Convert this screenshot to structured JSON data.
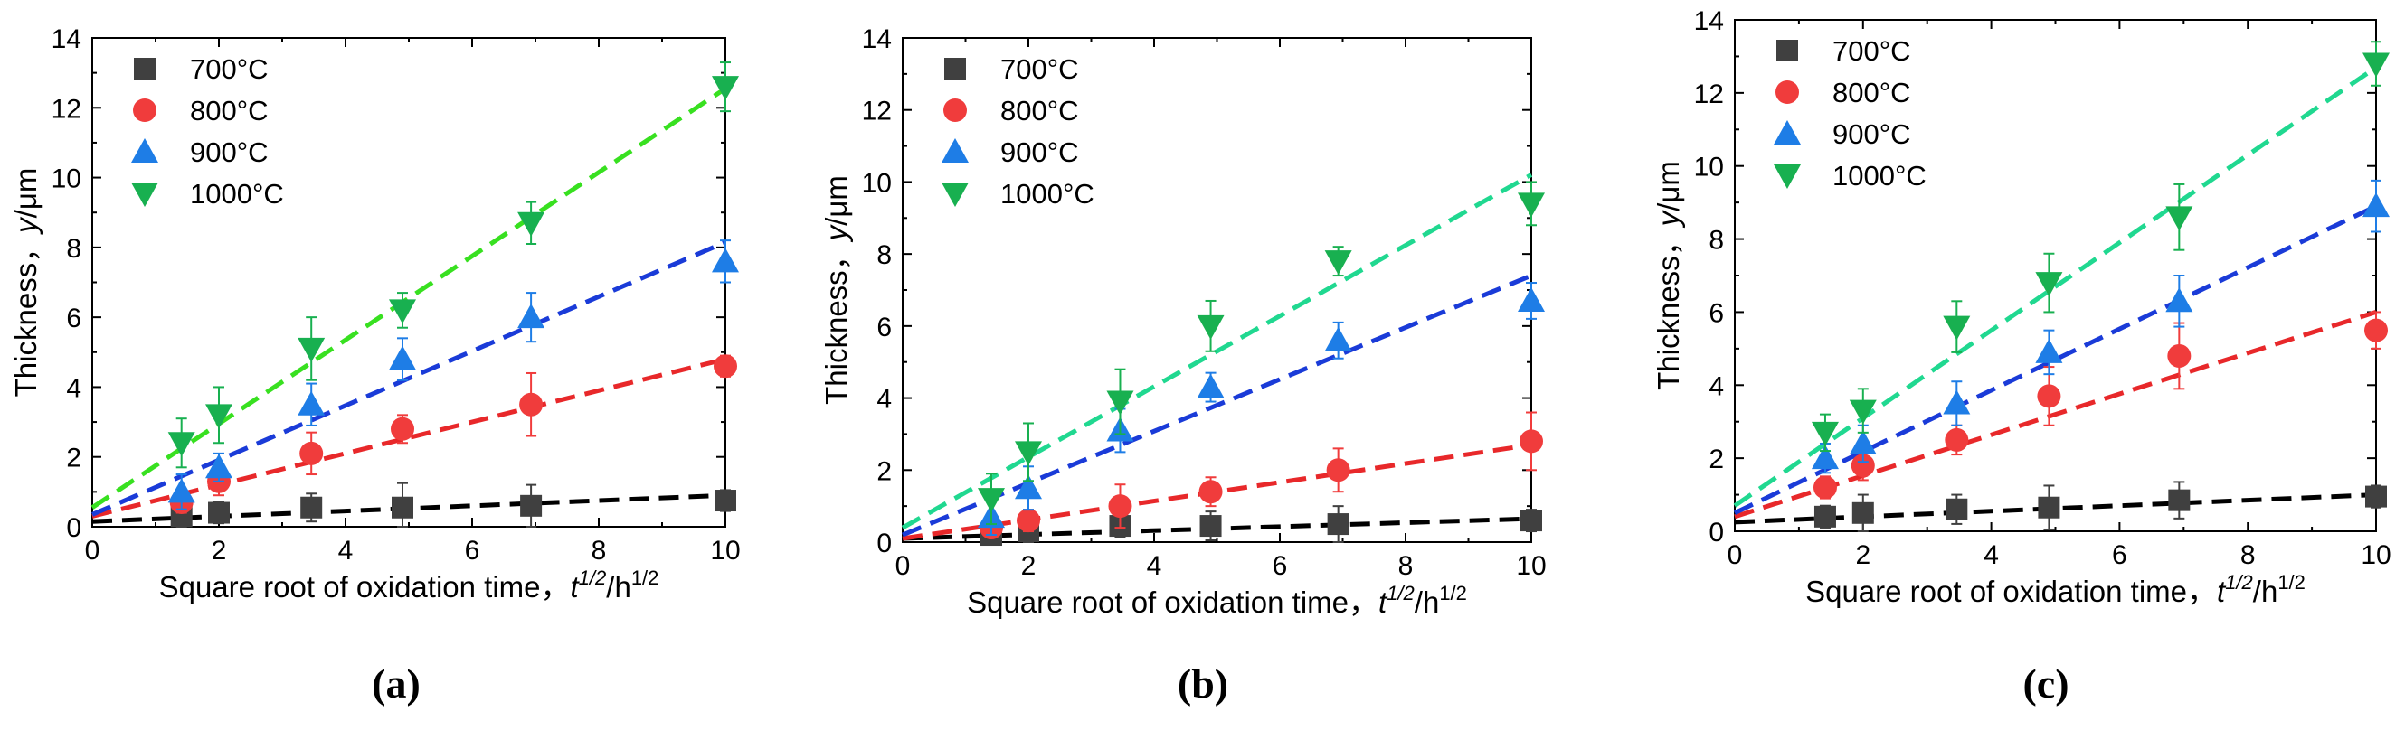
{
  "figure": {
    "panel_labels": [
      "(a)",
      "(b)",
      "(c)"
    ]
  },
  "colors": {
    "700": "#404040",
    "800": "#f03c3c",
    "900": "#1e7de6",
    "1000": "#18b050",
    "fit_700": "#000000",
    "fit_800": "#e8282a",
    "fit_900": "#1a3bd8",
    "fit_1000_a": "#38e020",
    "fit_1000_bc": "#20d890"
  },
  "chart_data": [
    {
      "type": "scatter",
      "title": "(a)",
      "xlabel": "Square root of oxidation time，",
      "xlabel_var": "t",
      "xlabel_var_sup": "1/2",
      "xlabel_unit": "/h",
      "xlabel_unit_sup": "1/2",
      "ylabel": "Thickness，",
      "ylabel_var": "y",
      "ylabel_unit": "/μm",
      "xlim": [
        0,
        10
      ],
      "ylim": [
        0,
        14
      ],
      "xticks": [
        "0",
        "2",
        "4",
        "6",
        "8",
        "10"
      ],
      "yticks": [
        "0",
        "2",
        "4",
        "6",
        "8",
        "10",
        "12",
        "14"
      ],
      "x": [
        1.41,
        2,
        3.46,
        4.9,
        6.93,
        10
      ],
      "legend_position": "top-left",
      "series": [
        {
          "name": "700°C",
          "marker": "square",
          "color_key": "700",
          "values": [
            0.3,
            0.4,
            0.55,
            0.55,
            0.6,
            0.75
          ],
          "errors": [
            0.3,
            0.3,
            0.4,
            0.7,
            0.6,
            0.3
          ],
          "fit": [
            0.15,
            0.075
          ],
          "fit_color_key": "fit_700"
        },
        {
          "name": "800°C",
          "marker": "circle",
          "color_key": "800",
          "values": [
            0.7,
            1.3,
            2.1,
            2.8,
            3.5,
            4.6
          ],
          "errors": [
            0.3,
            0.4,
            0.6,
            0.4,
            0.9,
            0.3
          ],
          "fit": [
            0.3,
            0.45
          ],
          "fit_color_key": "fit_800"
        },
        {
          "name": "900°C",
          "marker": "triangle-up",
          "color_key": "900",
          "values": [
            1.0,
            1.7,
            3.5,
            4.8,
            6.0,
            7.6
          ],
          "errors": [
            0.5,
            0.4,
            0.6,
            0.6,
            0.7,
            0.6
          ],
          "fit": [
            0.35,
            0.78
          ],
          "fit_color_key": "fit_900"
        },
        {
          "name": "1000°C",
          "marker": "triangle-down",
          "color_key": "1000",
          "values": [
            2.4,
            3.2,
            5.1,
            6.2,
            8.7,
            12.6
          ],
          "errors": [
            0.7,
            0.8,
            0.9,
            0.5,
            0.6,
            0.7
          ],
          "fit": [
            0.55,
            1.2
          ],
          "fit_color_key": "fit_1000_a"
        }
      ]
    },
    {
      "type": "scatter",
      "title": "(b)",
      "xlabel": "Square root of oxidation time，",
      "xlabel_var": "t",
      "xlabel_var_sup": "1/2",
      "xlabel_unit": "/h",
      "xlabel_unit_sup": "1/2",
      "ylabel": "Thickness，",
      "ylabel_var": "y",
      "ylabel_unit": "/μm",
      "xlim": [
        0,
        10
      ],
      "ylim": [
        0,
        14
      ],
      "xticks": [
        "0",
        "2",
        "4",
        "6",
        "8",
        "10"
      ],
      "yticks": [
        "0",
        "2",
        "4",
        "6",
        "8",
        "10",
        "12",
        "14"
      ],
      "x": [
        1.41,
        2,
        3.46,
        4.9,
        6.93,
        10
      ],
      "legend_position": "top-left",
      "series": [
        {
          "name": "700°C",
          "marker": "square",
          "color_key": "700",
          "values": [
            0.2,
            0.3,
            0.45,
            0.45,
            0.5,
            0.6
          ],
          "errors": [
            0.2,
            0.3,
            0.3,
            0.4,
            0.5,
            0.3
          ],
          "fit": [
            0.1,
            0.055
          ],
          "fit_color_key": "fit_700"
        },
        {
          "name": "800°C",
          "marker": "circle",
          "color_key": "800",
          "values": [
            0.4,
            0.6,
            1.0,
            1.4,
            2.0,
            2.8
          ],
          "errors": [
            0.2,
            0.3,
            0.6,
            0.4,
            0.6,
            0.8
          ],
          "fit": [
            0.1,
            0.26
          ],
          "fit_color_key": "fit_800"
        },
        {
          "name": "900°C",
          "marker": "triangle-up",
          "color_key": "900",
          "values": [
            0.7,
            1.5,
            3.1,
            4.3,
            5.6,
            6.7
          ],
          "errors": [
            0.5,
            0.6,
            0.6,
            0.4,
            0.5,
            0.5
          ],
          "fit": [
            0.2,
            0.72
          ],
          "fit_color_key": "fit_900"
        },
        {
          "name": "1000°C",
          "marker": "triangle-down",
          "color_key": "1000",
          "values": [
            1.2,
            2.5,
            3.9,
            6.0,
            7.8,
            9.4
          ],
          "errors": [
            0.7,
            0.8,
            0.9,
            0.7,
            0.4,
            0.6
          ],
          "fit": [
            0.4,
            0.98
          ],
          "fit_color_key": "fit_1000_bc"
        }
      ]
    },
    {
      "type": "scatter",
      "title": "(c)",
      "xlabel": "Square root of oxidation time，",
      "xlabel_var": "t",
      "xlabel_var_sup": "1/2",
      "xlabel_unit": "/h",
      "xlabel_unit_sup": "1/2",
      "ylabel": "Thickness，",
      "ylabel_var": "y",
      "ylabel_unit": "/μm",
      "xlim": [
        0,
        10
      ],
      "ylim": [
        0,
        14
      ],
      "xticks": [
        "0",
        "2",
        "4",
        "6",
        "8",
        "10"
      ],
      "yticks": [
        "0",
        "2",
        "4",
        "6",
        "8",
        "10",
        "12",
        "14"
      ],
      "x": [
        1.41,
        2,
        3.46,
        4.9,
        6.93,
        10
      ],
      "legend_position": "top-left",
      "series": [
        {
          "name": "700°C",
          "marker": "square",
          "color_key": "700",
          "values": [
            0.4,
            0.5,
            0.6,
            0.65,
            0.85,
            0.95
          ],
          "errors": [
            0.3,
            0.5,
            0.4,
            0.6,
            0.5,
            0.3
          ],
          "fit": [
            0.25,
            0.075
          ],
          "fit_color_key": "fit_700"
        },
        {
          "name": "800°C",
          "marker": "circle",
          "color_key": "800",
          "values": [
            1.2,
            1.8,
            2.5,
            3.7,
            4.8,
            5.5
          ],
          "errors": [
            0.3,
            0.4,
            0.4,
            0.8,
            0.9,
            0.5
          ],
          "fit": [
            0.4,
            0.56
          ],
          "fit_color_key": "fit_800"
        },
        {
          "name": "900°C",
          "marker": "triangle-up",
          "color_key": "900",
          "values": [
            2.0,
            2.4,
            3.5,
            4.9,
            6.3,
            8.9
          ],
          "errors": [
            0.4,
            0.5,
            0.6,
            0.6,
            0.7,
            0.7
          ],
          "fit": [
            0.5,
            0.84
          ],
          "fit_color_key": "fit_900"
        },
        {
          "name": "1000°C",
          "marker": "triangle-down",
          "color_key": "1000",
          "values": [
            2.7,
            3.3,
            5.6,
            6.8,
            8.6,
            12.8
          ],
          "errors": [
            0.5,
            0.6,
            0.7,
            0.8,
            0.9,
            0.6
          ],
          "fit": [
            0.7,
            1.2
          ],
          "fit_color_key": "fit_1000_bc"
        }
      ]
    }
  ]
}
